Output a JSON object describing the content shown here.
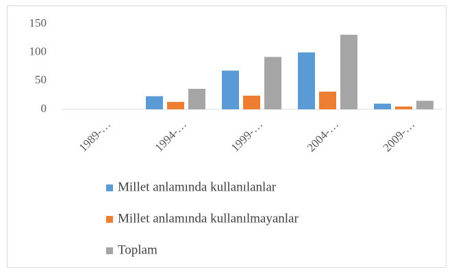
{
  "chart_data": {
    "type": "bar",
    "categories": [
      "1989-…",
      "1994-…",
      "1999-…",
      "2004-…",
      "2009-…"
    ],
    "series": [
      {
        "name": "Millet anlamında kullanılanlar",
        "color": "#5b9bd5",
        "values": [
          0,
          23,
          68,
          100,
          10
        ]
      },
      {
        "name": "Millet anlamında kullanılmayanlar",
        "color": "#ed7d31",
        "values": [
          0,
          13,
          24,
          31,
          5
        ]
      },
      {
        "name": "Toplam",
        "color": "#a5a5a5",
        "values": [
          0,
          36,
          92,
          131,
          15
        ]
      }
    ],
    "ylim": [
      0,
      150
    ],
    "yticks": [
      0,
      50,
      100,
      150
    ],
    "grid": false,
    "legend": "bottom"
  }
}
